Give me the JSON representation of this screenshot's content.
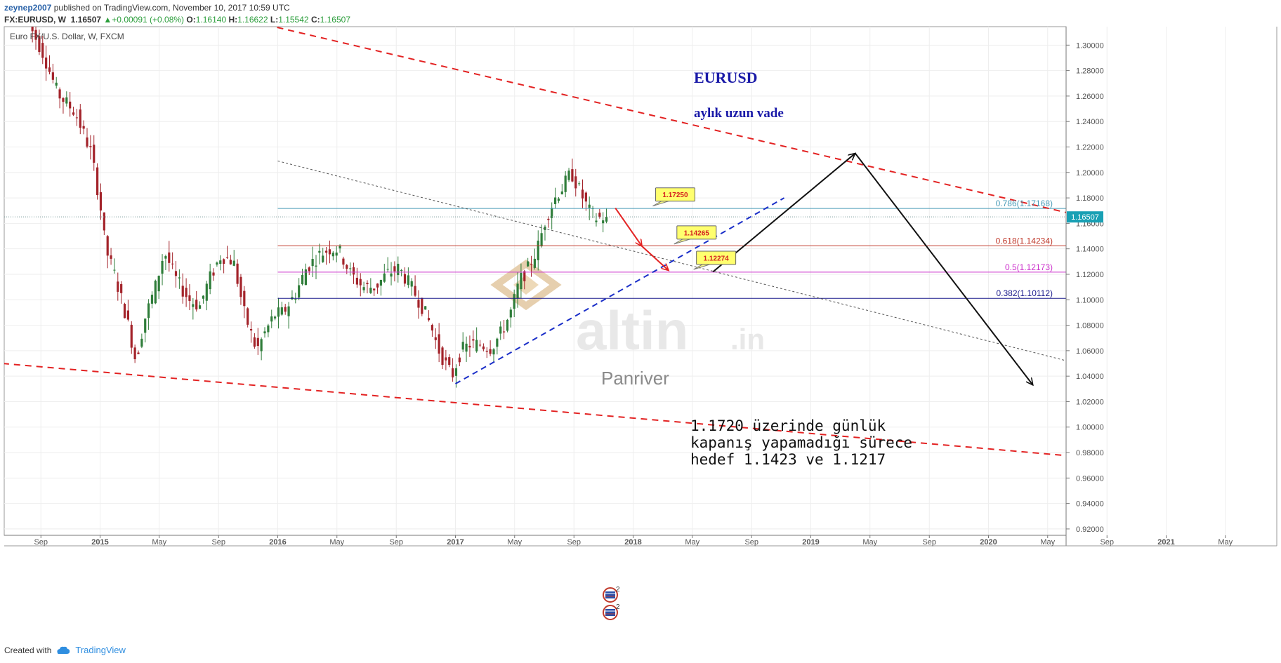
{
  "header": {
    "user": "zeynep2007",
    "published": " published on TradingView.com, November 10, 2017 10:59 UTC",
    "symbol": "FX:EURUSD, W",
    "last": "1.16507",
    "change": "+0.00091 (+0.08%)",
    "open_label": "O:",
    "open": "1.16140",
    "high_label": "H:",
    "high": "1.16622",
    "low_label": "L:",
    "low": "1.15542",
    "close_label": "C:",
    "close": "1.16507"
  },
  "footer": {
    "created_with": "Created with",
    "brand": "TradingView",
    "logo_icon": "tradingview-logo-icon"
  },
  "chart_data": {
    "type": "candlestick",
    "title": "Euro FX/U.S. Dollar, W, FXCM",
    "ylim": [
      0.915,
      1.3145
    ],
    "y_ticks": [
      "1.30000",
      "1.28000",
      "1.26000",
      "1.24000",
      "1.22000",
      "1.20000",
      "1.18000",
      "1.16000",
      "1.14000",
      "1.12000",
      "1.10000",
      "1.08000",
      "1.06000",
      "1.04000",
      "1.02000",
      "1.00000",
      "0.98000",
      "0.96000",
      "0.94000",
      "0.92000"
    ],
    "x_ticks": [
      {
        "label": "Sep",
        "t": 2014.667
      },
      {
        "label": "2015",
        "t": 2015.0
      },
      {
        "label": "May",
        "t": 2015.333
      },
      {
        "label": "Sep",
        "t": 2015.667
      },
      {
        "label": "2016",
        "t": 2016.0
      },
      {
        "label": "May",
        "t": 2016.333
      },
      {
        "label": "Sep",
        "t": 2016.667
      },
      {
        "label": "2017",
        "t": 2017.0
      },
      {
        "label": "May",
        "t": 2017.333
      },
      {
        "label": "Sep",
        "t": 2017.667
      },
      {
        "label": "2018",
        "t": 2018.0
      },
      {
        "label": "May",
        "t": 2018.333
      },
      {
        "label": "Sep",
        "t": 2018.667
      },
      {
        "label": "2019",
        "t": 2019.0
      },
      {
        "label": "May",
        "t": 2019.333
      },
      {
        "label": "Sep",
        "t": 2019.667
      },
      {
        "label": "2020",
        "t": 2020.0
      },
      {
        "label": "May",
        "t": 2020.333
      },
      {
        "label": "Sep",
        "t": 2020.667
      },
      {
        "label": "2021",
        "t": 2021.0
      },
      {
        "label": "May",
        "t": 2021.333
      }
    ],
    "anchors": [
      [
        2014.6,
        1.322
      ],
      [
        2014.7,
        1.293
      ],
      [
        2014.78,
        1.262
      ],
      [
        2014.88,
        1.247
      ],
      [
        2014.97,
        1.215
      ],
      [
        2015.02,
        1.175
      ],
      [
        2015.05,
        1.14
      ],
      [
        2015.1,
        1.12
      ],
      [
        2015.17,
        1.085
      ],
      [
        2015.22,
        1.052
      ],
      [
        2015.27,
        1.085
      ],
      [
        2015.33,
        1.11
      ],
      [
        2015.38,
        1.138
      ],
      [
        2015.45,
        1.115
      ],
      [
        2015.52,
        1.1
      ],
      [
        2015.58,
        1.095
      ],
      [
        2015.63,
        1.115
      ],
      [
        2015.7,
        1.135
      ],
      [
        2015.77,
        1.13
      ],
      [
        2015.83,
        1.09
      ],
      [
        2015.9,
        1.06
      ],
      [
        2015.95,
        1.075
      ],
      [
        2016.0,
        1.088
      ],
      [
        2016.05,
        1.09
      ],
      [
        2016.12,
        1.105
      ],
      [
        2016.18,
        1.125
      ],
      [
        2016.25,
        1.135
      ],
      [
        2016.31,
        1.14
      ],
      [
        2016.36,
        1.14
      ],
      [
        2016.43,
        1.12
      ],
      [
        2016.5,
        1.11
      ],
      [
        2016.57,
        1.11
      ],
      [
        2016.63,
        1.12
      ],
      [
        2016.7,
        1.125
      ],
      [
        2016.77,
        1.11
      ],
      [
        2016.83,
        1.095
      ],
      [
        2016.88,
        1.08
      ],
      [
        2016.92,
        1.062
      ],
      [
        2016.97,
        1.048
      ],
      [
        2017.0,
        1.04
      ],
      [
        2017.05,
        1.06
      ],
      [
        2017.1,
        1.065
      ],
      [
        2017.16,
        1.065
      ],
      [
        2017.22,
        1.062
      ],
      [
        2017.28,
        1.075
      ],
      [
        2017.33,
        1.09
      ],
      [
        2017.38,
        1.115
      ],
      [
        2017.43,
        1.125
      ],
      [
        2017.48,
        1.14
      ],
      [
        2017.53,
        1.165
      ],
      [
        2017.58,
        1.18
      ],
      [
        2017.63,
        1.19
      ],
      [
        2017.67,
        1.2
      ],
      [
        2017.72,
        1.185
      ],
      [
        2017.77,
        1.17
      ],
      [
        2017.81,
        1.164
      ],
      [
        2017.86,
        1.165
      ]
    ],
    "current_price": {
      "value": 1.16507,
      "label": "1.16507",
      "color": "#19a0b4"
    },
    "fib_levels": [
      {
        "label": "0.786(1.17168)",
        "value": 1.17168,
        "color": "#4a9cb8",
        "t0": 2016.0,
        "t1": 2020.95
      },
      {
        "label": "0.618(1.14234)",
        "value": 1.14234,
        "color": "#c0392b",
        "t0": 2016.0,
        "t1": 2020.95
      },
      {
        "label": "0.5(1.12173)",
        "value": 1.12173,
        "color": "#cc33cc",
        "t0": 2016.0,
        "t1": 2020.95
      },
      {
        "label": "0.382(1.10112)",
        "value": 1.10112,
        "color": "#1a1a8c",
        "t0": 2016.0,
        "t1": 2020.95
      }
    ],
    "trendlines": [
      {
        "type": "dashed-red",
        "color": "#e32222",
        "points": [
          [
            2015.75,
            1.322
          ],
          [
            2021.4,
            1.137
          ]
        ]
      },
      {
        "type": "dashed-red",
        "color": "#e32222",
        "points": [
          [
            2014.2,
            1.053
          ],
          [
            2021.4,
            0.966
          ]
        ]
      },
      {
        "type": "dashed-grey",
        "color": "#555555",
        "points": [
          [
            2016.0,
            1.209
          ],
          [
            2020.95,
            1.034
          ]
        ]
      },
      {
        "type": "dashed-blue",
        "color": "#1a2ec8",
        "points": [
          [
            2017.0,
            1.034
          ],
          [
            2018.85,
            1.18
          ]
        ]
      }
    ],
    "arrows": [
      {
        "color": "#111111",
        "points": [
          [
            2018.45,
            1.122
          ],
          [
            2019.25,
            1.215
          ]
        ]
      },
      {
        "color": "#111111",
        "points": [
          [
            2019.25,
            1.215
          ],
          [
            2020.25,
            1.033
          ]
        ]
      },
      {
        "color": "#e32222",
        "points": [
          [
            2017.9,
            1.172
          ],
          [
            2018.05,
            1.142
          ]
        ]
      },
      {
        "color": "#e32222",
        "points": [
          [
            2018.05,
            1.142
          ],
          [
            2018.2,
            1.123
          ]
        ]
      }
    ],
    "callouts": [
      {
        "label": "1.17250",
        "value": 1.1725,
        "t": 2018.15
      },
      {
        "label": "1.14265",
        "value": 1.14265,
        "t": 2018.27
      },
      {
        "label": "1.12274",
        "value": 1.12274,
        "t": 2018.38
      }
    ],
    "annotations": {
      "title_text": "EURUSD",
      "subtitle_text": "aylık uzun vade",
      "comment_lines": [
        "1.1720 üzerinde günlük",
        "kapanış yapamadığı sürece",
        "hedef 1.1423 ve 1.1217"
      ],
      "watermark_brand": "altin",
      "watermark_tld": ".in",
      "watermark_sub": "Panriver",
      "event_badge": "2",
      "event_icon": "flag-event-icon"
    },
    "colors": {
      "up": "#2f7d3a",
      "down": "#a3232a",
      "grid": "#eeeeee",
      "axis_text": "#555555"
    }
  }
}
